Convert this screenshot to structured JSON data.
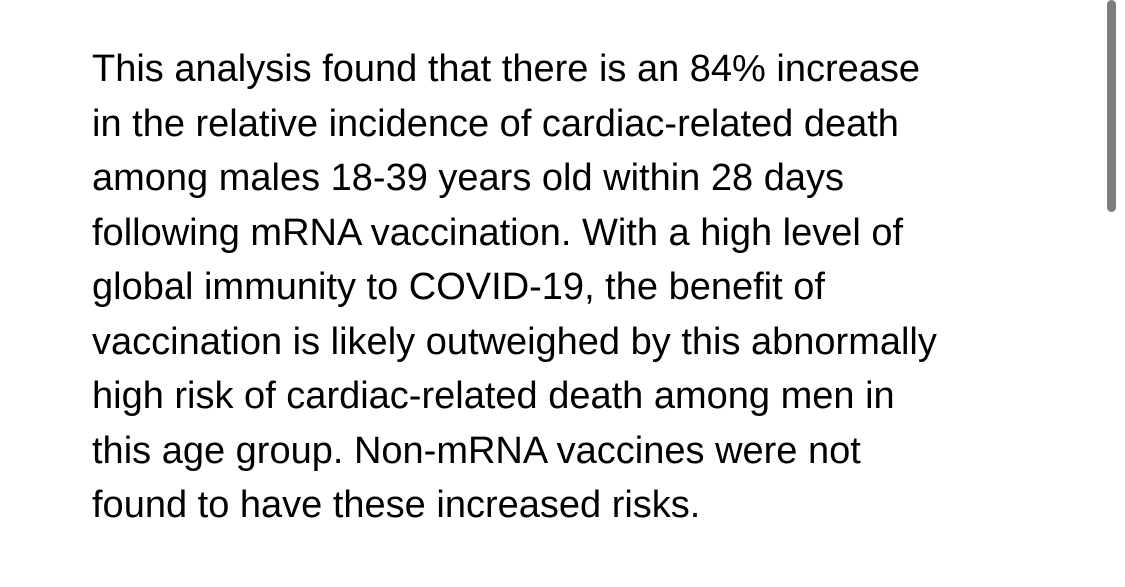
{
  "paragraph": {
    "lines": [
      "This analysis found that there is an 84% increase",
      "in the relative incidence of cardiac-related death",
      "among males 18-39 years old within 28 days",
      "following mRNA vaccination. With a high level of",
      "global immunity to COVID-19, the benefit of",
      "vaccination is likely outweighed by this abnormally",
      "high risk of cardiac-related death among men in",
      "this age group. Non-mRNA vaccines were not",
      "found to have these increased risks."
    ]
  },
  "colors": {
    "text": "#000000",
    "background": "#ffffff",
    "scrollbar": "#7d7d7d"
  }
}
